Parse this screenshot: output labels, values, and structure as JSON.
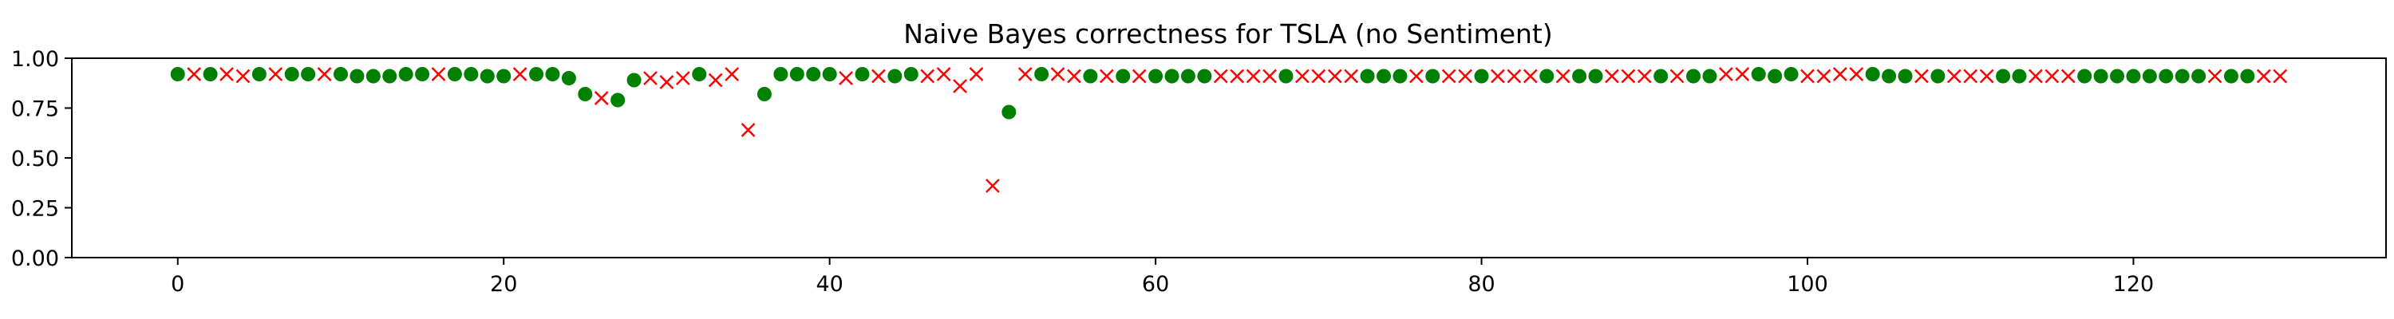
{
  "chart_data": {
    "type": "scatter",
    "title": "Naive Bayes correctness for TSLA (no Sentiment)",
    "xlabel": "",
    "ylabel": "",
    "xlim": [
      -6.5,
      135.5
    ],
    "ylim": [
      0.0,
      1.0
    ],
    "xticks": [
      0,
      20,
      40,
      60,
      80,
      100,
      120
    ],
    "yticks": [
      0.0,
      0.25,
      0.5,
      0.75,
      1.0
    ],
    "ytick_labels": [
      "0.00",
      "0.25",
      "0.50",
      "0.75",
      "1.00"
    ],
    "grid": false,
    "series": [
      {
        "name": "correct",
        "marker": "circle",
        "color": "#008000"
      },
      {
        "name": "incorrect",
        "marker": "x",
        "color": "#ff0000"
      }
    ],
    "points": [
      {
        "x": 0,
        "y": 0.92,
        "s": "correct"
      },
      {
        "x": 1,
        "y": 0.92,
        "s": "incorrect"
      },
      {
        "x": 2,
        "y": 0.92,
        "s": "correct"
      },
      {
        "x": 3,
        "y": 0.92,
        "s": "incorrect"
      },
      {
        "x": 4,
        "y": 0.91,
        "s": "incorrect"
      },
      {
        "x": 5,
        "y": 0.92,
        "s": "correct"
      },
      {
        "x": 6,
        "y": 0.92,
        "s": "incorrect"
      },
      {
        "x": 7,
        "y": 0.92,
        "s": "correct"
      },
      {
        "x": 8,
        "y": 0.92,
        "s": "correct"
      },
      {
        "x": 9,
        "y": 0.92,
        "s": "incorrect"
      },
      {
        "x": 10,
        "y": 0.92,
        "s": "correct"
      },
      {
        "x": 11,
        "y": 0.91,
        "s": "correct"
      },
      {
        "x": 12,
        "y": 0.91,
        "s": "correct"
      },
      {
        "x": 13,
        "y": 0.91,
        "s": "correct"
      },
      {
        "x": 14,
        "y": 0.92,
        "s": "correct"
      },
      {
        "x": 15,
        "y": 0.92,
        "s": "correct"
      },
      {
        "x": 16,
        "y": 0.92,
        "s": "incorrect"
      },
      {
        "x": 17,
        "y": 0.92,
        "s": "correct"
      },
      {
        "x": 18,
        "y": 0.92,
        "s": "correct"
      },
      {
        "x": 19,
        "y": 0.91,
        "s": "correct"
      },
      {
        "x": 20,
        "y": 0.91,
        "s": "correct"
      },
      {
        "x": 21,
        "y": 0.92,
        "s": "incorrect"
      },
      {
        "x": 22,
        "y": 0.92,
        "s": "correct"
      },
      {
        "x": 23,
        "y": 0.92,
        "s": "correct"
      },
      {
        "x": 24,
        "y": 0.9,
        "s": "correct"
      },
      {
        "x": 25,
        "y": 0.82,
        "s": "correct"
      },
      {
        "x": 26,
        "y": 0.8,
        "s": "incorrect"
      },
      {
        "x": 27,
        "y": 0.79,
        "s": "correct"
      },
      {
        "x": 28,
        "y": 0.89,
        "s": "correct"
      },
      {
        "x": 29,
        "y": 0.9,
        "s": "incorrect"
      },
      {
        "x": 30,
        "y": 0.88,
        "s": "incorrect"
      },
      {
        "x": 31,
        "y": 0.9,
        "s": "incorrect"
      },
      {
        "x": 32,
        "y": 0.92,
        "s": "correct"
      },
      {
        "x": 33,
        "y": 0.89,
        "s": "incorrect"
      },
      {
        "x": 34,
        "y": 0.92,
        "s": "incorrect"
      },
      {
        "x": 35,
        "y": 0.64,
        "s": "incorrect"
      },
      {
        "x": 36,
        "y": 0.82,
        "s": "correct"
      },
      {
        "x": 37,
        "y": 0.92,
        "s": "correct"
      },
      {
        "x": 38,
        "y": 0.92,
        "s": "correct"
      },
      {
        "x": 39,
        "y": 0.92,
        "s": "correct"
      },
      {
        "x": 40,
        "y": 0.92,
        "s": "correct"
      },
      {
        "x": 41,
        "y": 0.9,
        "s": "incorrect"
      },
      {
        "x": 42,
        "y": 0.92,
        "s": "correct"
      },
      {
        "x": 43,
        "y": 0.91,
        "s": "incorrect"
      },
      {
        "x": 44,
        "y": 0.91,
        "s": "correct"
      },
      {
        "x": 45,
        "y": 0.92,
        "s": "correct"
      },
      {
        "x": 46,
        "y": 0.91,
        "s": "incorrect"
      },
      {
        "x": 47,
        "y": 0.92,
        "s": "incorrect"
      },
      {
        "x": 48,
        "y": 0.86,
        "s": "incorrect"
      },
      {
        "x": 49,
        "y": 0.92,
        "s": "incorrect"
      },
      {
        "x": 50,
        "y": 0.36,
        "s": "incorrect"
      },
      {
        "x": 51,
        "y": 0.73,
        "s": "correct"
      },
      {
        "x": 52,
        "y": 0.92,
        "s": "incorrect"
      },
      {
        "x": 53,
        "y": 0.92,
        "s": "correct"
      },
      {
        "x": 54,
        "y": 0.92,
        "s": "incorrect"
      },
      {
        "x": 55,
        "y": 0.91,
        "s": "incorrect"
      },
      {
        "x": 56,
        "y": 0.91,
        "s": "correct"
      },
      {
        "x": 57,
        "y": 0.91,
        "s": "incorrect"
      },
      {
        "x": 58,
        "y": 0.91,
        "s": "correct"
      },
      {
        "x": 59,
        "y": 0.91,
        "s": "incorrect"
      },
      {
        "x": 60,
        "y": 0.91,
        "s": "correct"
      },
      {
        "x": 61,
        "y": 0.91,
        "s": "correct"
      },
      {
        "x": 62,
        "y": 0.91,
        "s": "correct"
      },
      {
        "x": 63,
        "y": 0.91,
        "s": "correct"
      },
      {
        "x": 64,
        "y": 0.91,
        "s": "incorrect"
      },
      {
        "x": 65,
        "y": 0.91,
        "s": "incorrect"
      },
      {
        "x": 66,
        "y": 0.91,
        "s": "incorrect"
      },
      {
        "x": 67,
        "y": 0.91,
        "s": "incorrect"
      },
      {
        "x": 68,
        "y": 0.91,
        "s": "correct"
      },
      {
        "x": 69,
        "y": 0.91,
        "s": "incorrect"
      },
      {
        "x": 70,
        "y": 0.91,
        "s": "incorrect"
      },
      {
        "x": 71,
        "y": 0.91,
        "s": "incorrect"
      },
      {
        "x": 72,
        "y": 0.91,
        "s": "incorrect"
      },
      {
        "x": 73,
        "y": 0.91,
        "s": "correct"
      },
      {
        "x": 74,
        "y": 0.91,
        "s": "correct"
      },
      {
        "x": 75,
        "y": 0.91,
        "s": "correct"
      },
      {
        "x": 76,
        "y": 0.91,
        "s": "incorrect"
      },
      {
        "x": 77,
        "y": 0.91,
        "s": "correct"
      },
      {
        "x": 78,
        "y": 0.91,
        "s": "incorrect"
      },
      {
        "x": 79,
        "y": 0.91,
        "s": "incorrect"
      },
      {
        "x": 80,
        "y": 0.91,
        "s": "correct"
      },
      {
        "x": 81,
        "y": 0.91,
        "s": "incorrect"
      },
      {
        "x": 82,
        "y": 0.91,
        "s": "incorrect"
      },
      {
        "x": 83,
        "y": 0.91,
        "s": "incorrect"
      },
      {
        "x": 84,
        "y": 0.91,
        "s": "correct"
      },
      {
        "x": 85,
        "y": 0.91,
        "s": "incorrect"
      },
      {
        "x": 86,
        "y": 0.91,
        "s": "correct"
      },
      {
        "x": 87,
        "y": 0.91,
        "s": "correct"
      },
      {
        "x": 88,
        "y": 0.91,
        "s": "incorrect"
      },
      {
        "x": 89,
        "y": 0.91,
        "s": "incorrect"
      },
      {
        "x": 90,
        "y": 0.91,
        "s": "incorrect"
      },
      {
        "x": 91,
        "y": 0.91,
        "s": "correct"
      },
      {
        "x": 92,
        "y": 0.91,
        "s": "incorrect"
      },
      {
        "x": 93,
        "y": 0.91,
        "s": "correct"
      },
      {
        "x": 94,
        "y": 0.91,
        "s": "correct"
      },
      {
        "x": 95,
        "y": 0.92,
        "s": "incorrect"
      },
      {
        "x": 96,
        "y": 0.92,
        "s": "incorrect"
      },
      {
        "x": 97,
        "y": 0.92,
        "s": "correct"
      },
      {
        "x": 98,
        "y": 0.91,
        "s": "correct"
      },
      {
        "x": 99,
        "y": 0.92,
        "s": "correct"
      },
      {
        "x": 100,
        "y": 0.91,
        "s": "incorrect"
      },
      {
        "x": 101,
        "y": 0.91,
        "s": "incorrect"
      },
      {
        "x": 102,
        "y": 0.92,
        "s": "incorrect"
      },
      {
        "x": 103,
        "y": 0.92,
        "s": "incorrect"
      },
      {
        "x": 104,
        "y": 0.92,
        "s": "correct"
      },
      {
        "x": 105,
        "y": 0.91,
        "s": "correct"
      },
      {
        "x": 106,
        "y": 0.91,
        "s": "correct"
      },
      {
        "x": 107,
        "y": 0.91,
        "s": "incorrect"
      },
      {
        "x": 108,
        "y": 0.91,
        "s": "correct"
      },
      {
        "x": 109,
        "y": 0.91,
        "s": "incorrect"
      },
      {
        "x": 110,
        "y": 0.91,
        "s": "incorrect"
      },
      {
        "x": 111,
        "y": 0.91,
        "s": "incorrect"
      },
      {
        "x": 112,
        "y": 0.91,
        "s": "correct"
      },
      {
        "x": 113,
        "y": 0.91,
        "s": "correct"
      },
      {
        "x": 114,
        "y": 0.91,
        "s": "incorrect"
      },
      {
        "x": 115,
        "y": 0.91,
        "s": "incorrect"
      },
      {
        "x": 116,
        "y": 0.91,
        "s": "incorrect"
      },
      {
        "x": 117,
        "y": 0.91,
        "s": "correct"
      },
      {
        "x": 118,
        "y": 0.91,
        "s": "correct"
      },
      {
        "x": 119,
        "y": 0.91,
        "s": "correct"
      },
      {
        "x": 120,
        "y": 0.91,
        "s": "correct"
      },
      {
        "x": 121,
        "y": 0.91,
        "s": "correct"
      },
      {
        "x": 122,
        "y": 0.91,
        "s": "correct"
      },
      {
        "x": 123,
        "y": 0.91,
        "s": "correct"
      },
      {
        "x": 124,
        "y": 0.91,
        "s": "correct"
      },
      {
        "x": 125,
        "y": 0.91,
        "s": "incorrect"
      },
      {
        "x": 126,
        "y": 0.91,
        "s": "correct"
      },
      {
        "x": 127,
        "y": 0.91,
        "s": "correct"
      },
      {
        "x": 128,
        "y": 0.91,
        "s": "incorrect"
      },
      {
        "x": 129,
        "y": 0.91,
        "s": "incorrect"
      }
    ]
  }
}
